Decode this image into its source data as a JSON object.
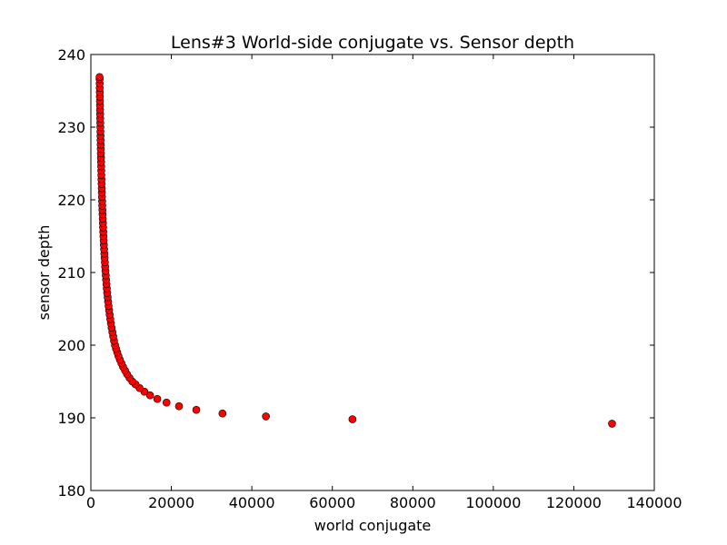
{
  "chart_data": {
    "type": "scatter",
    "title": "Lens#3 World-side conjugate vs. Sensor depth",
    "xlabel": "world conjugate",
    "ylabel": "sensor depth",
    "xlim": [
      0,
      140000
    ],
    "ylim": [
      180,
      240
    ],
    "xticks": [
      0,
      20000,
      40000,
      60000,
      80000,
      100000,
      120000,
      140000
    ],
    "yticks": [
      180,
      190,
      200,
      210,
      220,
      230,
      240
    ],
    "grid": false,
    "marker_color": "#ff0000",
    "marker_edge_color": "#000000",
    "points": [
      [
        129500,
        189.2
      ],
      [
        65000,
        189.8
      ],
      [
        43500,
        190.2
      ],
      [
        32700,
        190.6
      ],
      [
        26200,
        191.1
      ],
      [
        21900,
        191.6
      ],
      [
        18800,
        192.1
      ],
      [
        16500,
        192.6
      ],
      [
        14700,
        193.1
      ],
      [
        13300,
        193.6
      ],
      [
        12100,
        194.1
      ],
      [
        11100,
        194.6
      ],
      [
        10300,
        195.0
      ],
      [
        9600,
        195.5
      ],
      [
        9000,
        196.0
      ],
      [
        8500,
        196.5
      ],
      [
        8000,
        197.0
      ],
      [
        7600,
        197.5
      ],
      [
        7200,
        198.0
      ],
      [
        6850,
        198.5
      ],
      [
        6550,
        199.0
      ],
      [
        6250,
        199.5
      ],
      [
        6000,
        200.0
      ],
      [
        5750,
        200.6
      ],
      [
        5550,
        201.2
      ],
      [
        5350,
        201.8
      ],
      [
        5150,
        202.4
      ],
      [
        4980,
        203.0
      ],
      [
        4820,
        203.6
      ],
      [
        4670,
        204.2
      ],
      [
        4530,
        204.8
      ],
      [
        4400,
        205.4
      ],
      [
        4280,
        206.0
      ],
      [
        4170,
        206.6
      ],
      [
        4060,
        207.2
      ],
      [
        3960,
        207.8
      ],
      [
        3870,
        208.4
      ],
      [
        3780,
        209.0
      ],
      [
        3700,
        209.6
      ],
      [
        3620,
        210.2
      ],
      [
        3550,
        210.8
      ],
      [
        3480,
        211.4
      ],
      [
        3410,
        212.0
      ],
      [
        3350,
        212.6
      ],
      [
        3290,
        213.2
      ],
      [
        3230,
        213.8
      ],
      [
        3180,
        214.4
      ],
      [
        3130,
        215.0
      ],
      [
        3080,
        215.6
      ],
      [
        3030,
        216.2
      ],
      [
        2990,
        216.8
      ],
      [
        2950,
        217.4
      ],
      [
        2910,
        218.0
      ],
      [
        2870,
        218.6
      ],
      [
        2830,
        219.2
      ],
      [
        2800,
        219.8
      ],
      [
        2760,
        220.4
      ],
      [
        2730,
        221.0
      ],
      [
        2700,
        221.6
      ],
      [
        2670,
        222.2
      ],
      [
        2640,
        222.8
      ],
      [
        2610,
        223.4
      ],
      [
        2580,
        224.0
      ],
      [
        2560,
        224.6
      ],
      [
        2530,
        225.2
      ],
      [
        2510,
        225.8
      ],
      [
        2480,
        226.4
      ],
      [
        2460,
        227.0
      ],
      [
        2440,
        227.6
      ],
      [
        2420,
        228.2
      ],
      [
        2400,
        228.8
      ],
      [
        2380,
        229.4
      ],
      [
        2360,
        230.0
      ],
      [
        2340,
        230.6
      ],
      [
        2320,
        231.2
      ],
      [
        2300,
        231.8
      ],
      [
        2280,
        232.4
      ],
      [
        2270,
        233.0
      ],
      [
        2250,
        233.6
      ],
      [
        2230,
        234.2
      ],
      [
        2220,
        234.8
      ],
      [
        2200,
        235.4
      ],
      [
        2190,
        236.0
      ],
      [
        2170,
        236.6
      ],
      [
        2160,
        236.9
      ]
    ]
  }
}
